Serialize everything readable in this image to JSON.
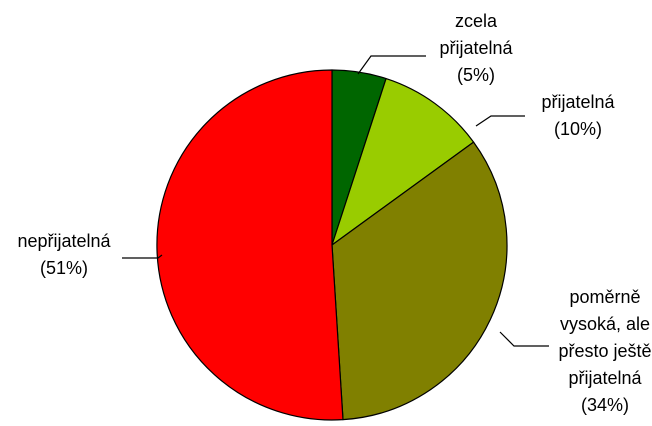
{
  "chart_data": {
    "type": "pie",
    "title": "",
    "slices": [
      {
        "label_lines": [
          "zcela",
          "přijatelná",
          "(5%)"
        ],
        "value": 5,
        "color": "#006600"
      },
      {
        "label_lines": [
          "přijatelná",
          "(10%)"
        ],
        "value": 10,
        "color": "#99cc00"
      },
      {
        "label_lines": [
          "poměrně",
          "vysoká, ale",
          "přesto ještě",
          "přijatelná",
          "(34%)"
        ],
        "value": 34,
        "color": "#808000"
      },
      {
        "label_lines": [
          "nepřijatelná",
          "(51%)"
        ],
        "value": 51,
        "color": "#ff0000"
      }
    ],
    "start_angle_deg": 0,
    "direction": "clockwise",
    "legend": "none"
  }
}
